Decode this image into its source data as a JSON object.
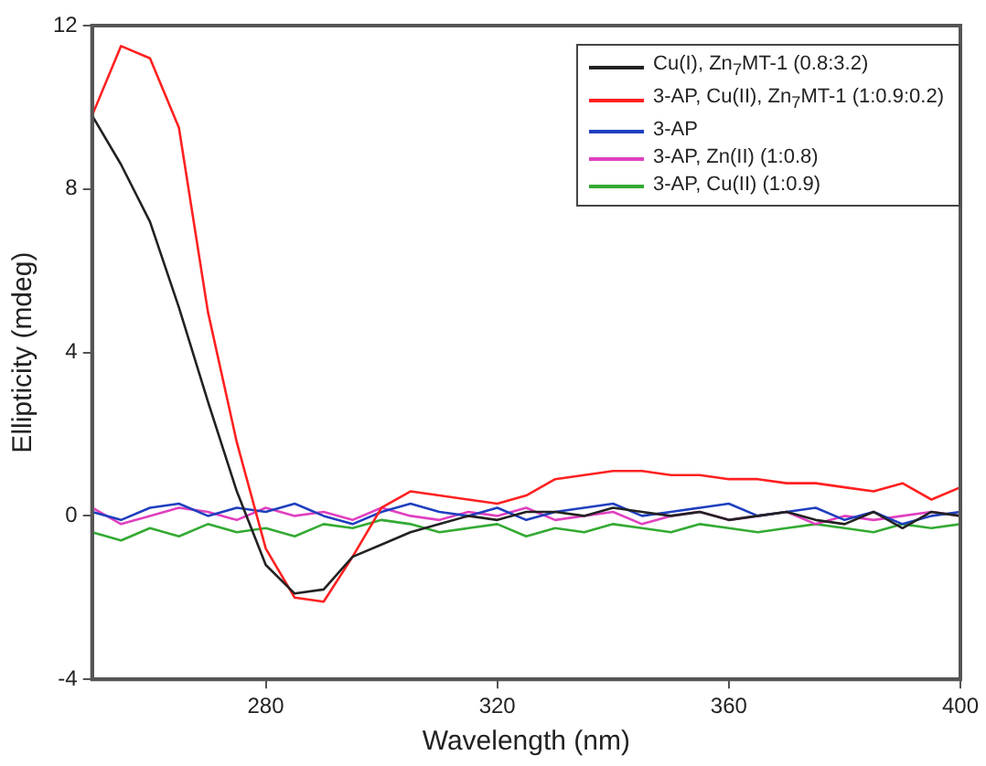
{
  "chart_data": {
    "type": "line",
    "xlabel": "Wavelength (nm)",
    "ylabel": "Ellipticity (mdeg)",
    "x": [
      250,
      255,
      260,
      265,
      270,
      275,
      280,
      285,
      290,
      295,
      300,
      305,
      310,
      315,
      320,
      325,
      330,
      335,
      340,
      345,
      350,
      355,
      360,
      365,
      370,
      375,
      380,
      385,
      390,
      395,
      400
    ],
    "series": [
      {
        "name": "Cu(I), Zn$_{7}$MT-1 (0.8:3.2)",
        "color": "#222222",
        "values": [
          9.8,
          8.6,
          7.2,
          5.1,
          2.8,
          0.6,
          -1.2,
          -1.9,
          -1.8,
          -1.0,
          -0.7,
          -0.4,
          -0.2,
          0.0,
          -0.1,
          0.1,
          0.1,
          0.0,
          0.2,
          0.1,
          0.0,
          0.1,
          -0.1,
          0.0,
          0.1,
          -0.1,
          -0.2,
          0.1,
          -0.3,
          0.1,
          0.0
        ]
      },
      {
        "name": "3-AP, Cu(II), Zn$_{7}$MT-1 (1:0.9:0.2)",
        "color": "#ff2020",
        "values": [
          9.8,
          11.5,
          11.2,
          9.5,
          5.0,
          1.8,
          -0.8,
          -2.0,
          -2.1,
          -1.0,
          0.2,
          0.6,
          0.5,
          0.4,
          0.3,
          0.5,
          0.9,
          1.0,
          1.1,
          1.1,
          1.0,
          1.0,
          0.9,
          0.9,
          0.8,
          0.8,
          0.7,
          0.6,
          0.8,
          0.4,
          0.7
        ]
      },
      {
        "name": "3-AP",
        "color": "#1f3fbf",
        "values": [
          0.1,
          -0.1,
          0.2,
          0.3,
          0.0,
          0.2,
          0.1,
          0.3,
          0.0,
          -0.2,
          0.1,
          0.3,
          0.1,
          0.0,
          0.2,
          -0.1,
          0.1,
          0.2,
          0.3,
          0.0,
          0.1,
          0.2,
          0.3,
          0.0,
          0.1,
          0.2,
          -0.1,
          0.1,
          -0.2,
          0.0,
          0.1
        ]
      },
      {
        "name": "3-AP, Zn(II) (1:0.8)",
        "color": "#e040c0",
        "values": [
          0.2,
          -0.2,
          0.0,
          0.2,
          0.1,
          -0.1,
          0.2,
          0.0,
          0.1,
          -0.1,
          0.2,
          0.0,
          -0.1,
          0.1,
          0.0,
          0.2,
          -0.1,
          0.0,
          0.1,
          -0.2,
          0.0,
          0.1,
          -0.1,
          0.0,
          0.1,
          -0.2,
          0.0,
          -0.1,
          0.0,
          0.1,
          0.0
        ]
      },
      {
        "name": "3-AP, Cu(II) (1:0.9)",
        "color": "#33aa33",
        "values": [
          -0.4,
          -0.6,
          -0.3,
          -0.5,
          -0.2,
          -0.4,
          -0.3,
          -0.5,
          -0.2,
          -0.3,
          -0.1,
          -0.2,
          -0.4,
          -0.3,
          -0.2,
          -0.5,
          -0.3,
          -0.4,
          -0.2,
          -0.3,
          -0.4,
          -0.2,
          -0.3,
          -0.4,
          -0.3,
          -0.2,
          -0.3,
          -0.4,
          -0.2,
          -0.3,
          -0.2
        ]
      }
    ],
    "xlim": [
      250,
      400
    ],
    "xticks": [
      280,
      320,
      360,
      400
    ],
    "ylim": [
      -4,
      12
    ],
    "yticks": [
      -4,
      0,
      4,
      8,
      12
    ],
    "grid": false,
    "legend": "top right",
    "marker": "none",
    "line_style": "solid"
  }
}
